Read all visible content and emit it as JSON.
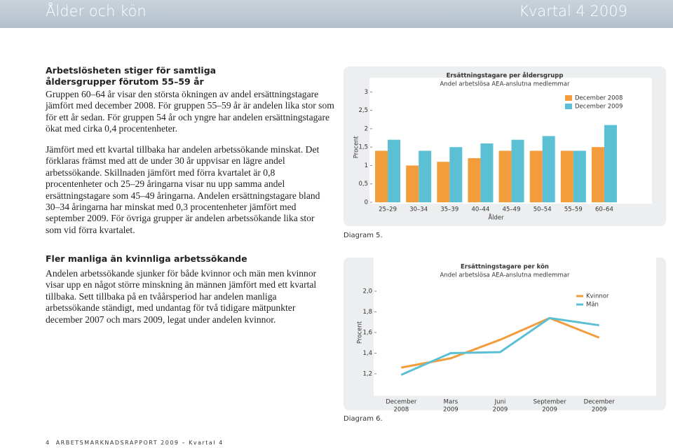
{
  "header": {
    "title": "Ålder och kön",
    "quarter": "Kvartal 4 2009"
  },
  "sections": [
    {
      "heading": "Arbetslösheten stiger för samtliga åldersgrupper förutom 55–59 år",
      "paragraphs": [
        "Gruppen 60–64 år visar den största ökningen av andel ersättningstagare jämfört med december 2008. För gruppen 55–59 år är andelen lika stor som för ett år sedan. För gruppen 54 år och yngre har andelen ersättningstagare ökat med cirka 0,4 procentenheter.",
        "Jämfört med ett kvartal tillbaka har andelen arbetssökande minskat. Det förklaras främst med att de under 30 år uppvisar en lägre andel arbetssökande. Skillnaden jämfört med förra kvartalet är 0,8 procentenheter och 25–29 åringarna visar nu upp samma andel ersättningstagare som 45–49 åringarna. Andelen ersättningstagare bland 30–34 åringarna har minskat med 0,3 procentenheter jämfört med september 2009. För övriga grupper är andelen arbetssökande lika stor som vid förra kvartalet."
      ]
    },
    {
      "heading": "Fler manliga än kvinnliga arbetssökande",
      "paragraphs": [
        "Andelen arbetssökande sjunker för både kvinnor och män men kvinnor visar upp en något större minskning än männen jämfört med ett kvartal tillbaka. Sett tillbaka på en tvåårsperiod har andelen manliga arbetssökande ständigt, med undantag för två tidigare mätpunkter december 2007 och mars 2009, legat under andelen kvinnor."
      ]
    }
  ],
  "footer": {
    "page": "4",
    "text": "ARBETSMARKNADSRAPPORT 2009 – Kvartal 4"
  },
  "chart_data": [
    {
      "type": "bar",
      "title": "Ersättningstagare per åldersgrupp",
      "subtitle": "Andel arbetslösa AEA-anslutna medlemmar",
      "caption": "Diagram 5.",
      "ylabel": "Procent",
      "xlabel": "Ålder",
      "categories": [
        "25–29",
        "30–34",
        "35–39",
        "40–44",
        "45–49",
        "50–54",
        "55–59",
        "60–64"
      ],
      "series": [
        {
          "name": "December 2008",
          "color": "#f39c3c",
          "values": [
            1.4,
            1.0,
            1.1,
            1.2,
            1.4,
            1.4,
            1.4,
            1.5
          ]
        },
        {
          "name": "December 2009",
          "color": "#5bc0d4",
          "values": [
            1.7,
            1.4,
            1.5,
            1.6,
            1.7,
            1.8,
            1.4,
            2.1
          ]
        }
      ],
      "ylim": [
        0,
        3
      ],
      "yticks": [
        0,
        {
          "value": 0.5,
          "label": "0,5"
        },
        1,
        {
          "value": 1.5,
          "label": "1,5"
        },
        2,
        {
          "value": 2.5,
          "label": "2,5"
        },
        3
      ],
      "legend": "top-right"
    },
    {
      "type": "line",
      "title": "Ersättningstagare per kön",
      "subtitle": "Andel arbetslösa AEA-anslutna medlemmar",
      "caption": "Diagram 6.",
      "ylabel": "Procent",
      "categories": [
        "December 2008",
        "Mars 2009",
        "Juni 2009",
        "September 2009",
        "December 2009"
      ],
      "series": [
        {
          "name": "Kvinnor",
          "color": "#f39c3c",
          "values": [
            1.26,
            1.35,
            1.53,
            1.74,
            1.55
          ]
        },
        {
          "name": "Män",
          "color": "#5bc0d4",
          "values": [
            1.19,
            1.4,
            1.41,
            1.74,
            1.67
          ]
        }
      ],
      "ylim": [
        1.0,
        2.2
      ],
      "yticks": [
        {
          "value": 1.2,
          "label": "1,2"
        },
        {
          "value": 1.4,
          "label": "1,4"
        },
        {
          "value": 1.6,
          "label": "1,6"
        },
        {
          "value": 1.8,
          "label": "1,8"
        },
        {
          "value": 2.0,
          "label": "2,0"
        }
      ],
      "legend": "top-right"
    }
  ]
}
